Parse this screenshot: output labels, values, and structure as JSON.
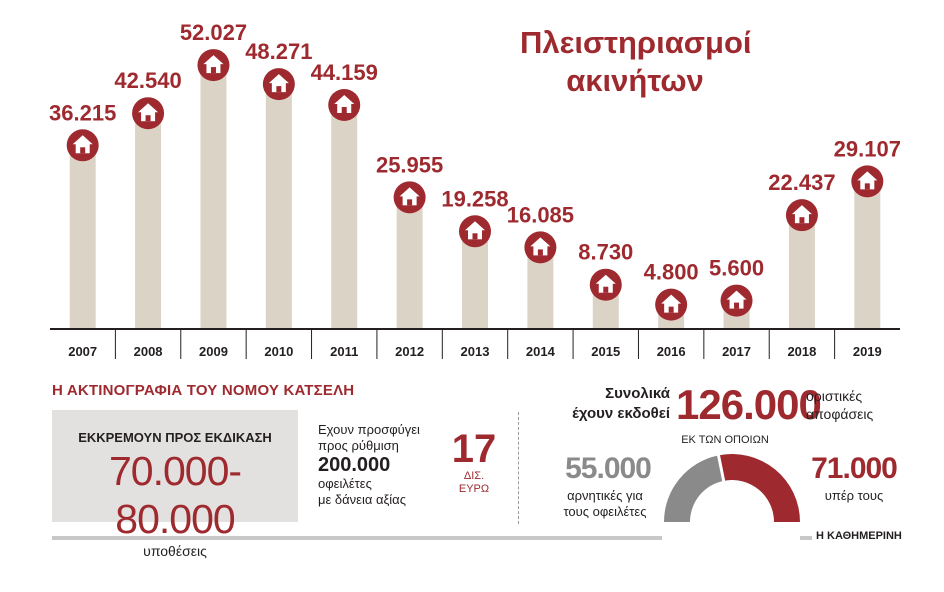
{
  "title": "Πλειστηριασμοί ακινήτων",
  "chart_data": {
    "type": "bar",
    "title": "Πλειστηριασμοί ακινήτων",
    "categories": [
      "2007",
      "2008",
      "2009",
      "2010",
      "2011",
      "2012",
      "2013",
      "2014",
      "2015",
      "2016",
      "2017",
      "2018",
      "2019"
    ],
    "values": [
      36215,
      42540,
      52027,
      48271,
      44159,
      25955,
      19258,
      16085,
      8730,
      4800,
      5600,
      22437,
      29107
    ],
    "value_labels": [
      "36.215",
      "42.540",
      "52.027",
      "48.271",
      "44.159",
      "25.955",
      "19.258",
      "16.085",
      "8.730",
      "4.800",
      "5.600",
      "22.437",
      "29.107"
    ],
    "marker_icon": "house-icon",
    "bar_color": "#dcd3c7",
    "marker_color": "#9e2a2f",
    "ylim": [
      0,
      55000
    ],
    "grid": false
  },
  "section": {
    "title": "Η ΑΚΤΙΝΟΓΡΑΦΙΑ ΤΟΥ ΝΟΜΟΥ ΚΑΤΣΕΛΗ",
    "pending": {
      "label": "ΕΚΚΡΕΜΟΥΝ ΠΡΟΣ ΕΚΔΙΚΑΣΗ",
      "range": "70.000-80.000",
      "unit": "υποθέσεις"
    },
    "appeal": {
      "line1": "Εχουν προσφύγει",
      "line2": "προς ρύθμιση",
      "count": "200.000",
      "line3": "οφειλέτες",
      "line4": "με δάνεια αξίας"
    },
    "billions": {
      "number": "17",
      "unit1": "ΔΙΣ.",
      "unit2": "ΕΥΡΩ"
    },
    "decisions": {
      "label_line1": "Συνολικά",
      "label_line2": "έχουν εκδοθεί",
      "total": "126.000",
      "total_unit_line1": "οριστικές",
      "total_unit_line2": "αποφάσεις",
      "of_which": "ΕΚ ΤΩΝ ΟΠΟΙΩΝ",
      "negative_value": "55.000",
      "negative_label_line1": "αρνητικές για",
      "negative_label_line2": "τους οφειλέτες",
      "positive_value": "71.000",
      "positive_label": "υπέρ τους",
      "donut": {
        "negative": 55000,
        "positive": 71000,
        "negative_color": "#8a8a8a",
        "positive_color": "#9e2a2f"
      }
    },
    "credit": "Η ΚΑΘΗΜΕΡΙΝΗ"
  }
}
